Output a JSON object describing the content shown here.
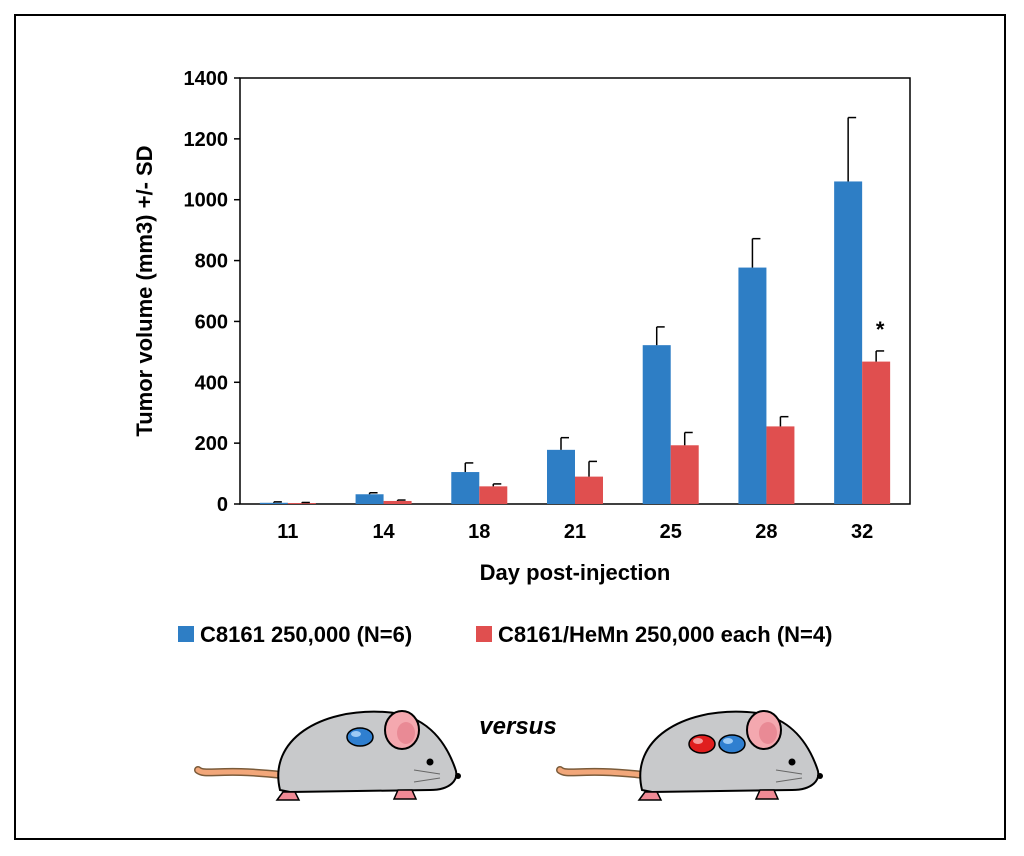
{
  "chart_data": {
    "type": "bar",
    "title": "",
    "xlabel": "Day post-injection",
    "ylabel": "Tumor volume (mm3) +/- SD",
    "ylim": [
      0,
      1400
    ],
    "yticks": [
      0,
      200,
      400,
      600,
      800,
      1000,
      1200,
      1400
    ],
    "categories": [
      "11",
      "14",
      "18",
      "21",
      "25",
      "28",
      "32"
    ],
    "series": [
      {
        "name": "C8161 250,000 (N=6)",
        "color": "#2E7EC5",
        "values": [
          4,
          32,
          105,
          178,
          522,
          777,
          1060
        ],
        "errors": [
          3,
          5,
          30,
          40,
          60,
          95,
          210
        ]
      },
      {
        "name": "C8161/HeMn 250,000 each (N=4)",
        "color": "#E04F4F",
        "values": [
          3,
          10,
          58,
          90,
          193,
          255,
          468
        ],
        "errors": [
          2,
          3,
          8,
          50,
          42,
          32,
          35
        ]
      }
    ],
    "annotations": [
      {
        "text": "*",
        "category": "32",
        "series": 1
      }
    ],
    "legend_position": "bottom"
  },
  "illustration": {
    "versus_label": "versus",
    "mouse_colors": {
      "body": "#C8C9CB",
      "ear": "#F4A8AF",
      "tail": "#F2A77A",
      "feet": "#F08A95",
      "blue_tumor": "#2F7FD0",
      "red_tumor": "#E01E1E"
    }
  }
}
